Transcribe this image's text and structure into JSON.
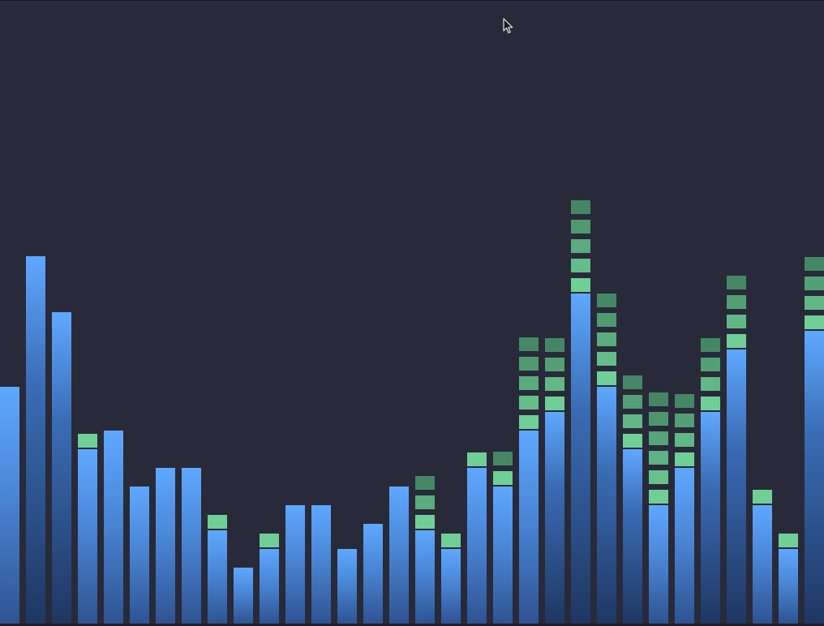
{
  "visualizer": {
    "bar_levels": [
      0.38,
      0.59,
      0.5,
      0.28,
      0.31,
      0.22,
      0.25,
      0.25,
      0.15,
      0.09,
      0.12,
      0.19,
      0.19,
      0.12,
      0.16,
      0.22,
      0.15,
      0.12,
      0.25,
      0.22,
      0.31,
      0.34,
      0.53,
      0.38,
      0.28,
      0.19,
      0.25,
      0.34,
      0.44,
      0.19,
      0.12,
      0.47
    ],
    "bar_tone": [
      "light",
      "dark",
      "dark",
      "light",
      "light",
      "light",
      "light",
      "light",
      "light",
      "light",
      "light",
      "light",
      "light",
      "light",
      "light",
      "light",
      "light",
      "light",
      "light",
      "light",
      "light",
      "dark",
      "dark",
      "dark",
      "dark",
      "light",
      "light",
      "dark",
      "dark",
      "light",
      "light",
      "dark"
    ],
    "peak_counts": [
      0,
      0,
      0,
      1,
      0,
      0,
      0,
      0,
      1,
      0,
      1,
      0,
      0,
      0,
      0,
      0,
      3,
      1,
      1,
      2,
      5,
      4,
      5,
      5,
      4,
      6,
      4,
      4,
      4,
      1,
      1,
      4
    ],
    "colors": {
      "background": "#282a3a",
      "bar_top": "#5fa8ff",
      "bar_bottom": "#2f5391",
      "peak_bright": "#6fcf97",
      "peak_dim": "#3e7a5c"
    },
    "cursor_icon": "arrow-cursor-icon"
  }
}
